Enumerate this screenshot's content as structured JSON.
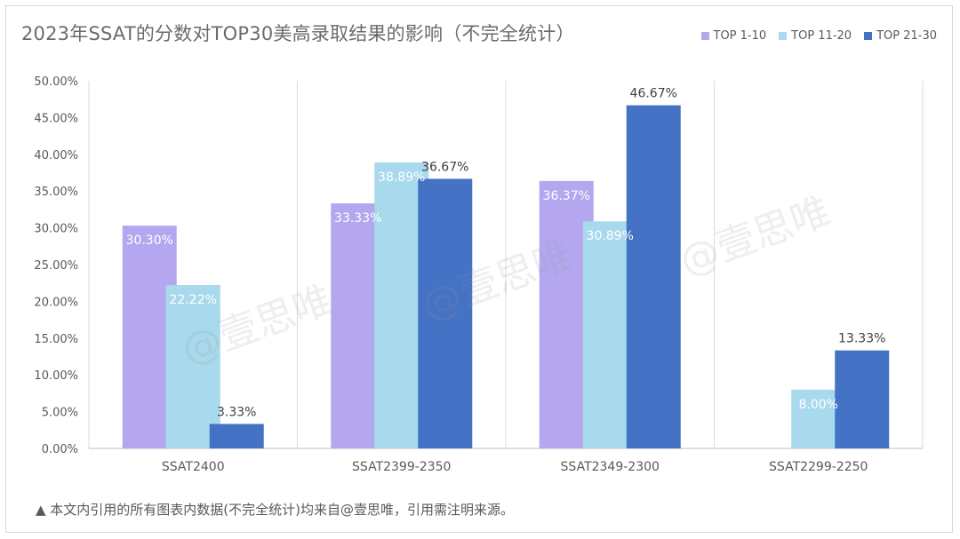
{
  "chart_data": {
    "type": "bar",
    "title": "2023年SSAT的分数对TOP30美高录取结果的影响（不完全统计）",
    "categories": [
      "SSAT2400",
      "SSAT2399-2350",
      "SSAT2349-2300",
      "SSAT2299-2250"
    ],
    "series": [
      {
        "name": "TOP 1-10",
        "color": "#b4a7f0",
        "values": [
          30.3,
          33.33,
          36.37,
          null
        ],
        "labels": [
          "30.30%",
          "33.33%",
          "36.37%",
          ""
        ]
      },
      {
        "name": "TOP 11-20",
        "color": "#a9d9ec",
        "values": [
          22.22,
          38.89,
          30.89,
          8.0
        ],
        "labels": [
          "22.22%",
          "38.89%",
          "30.89%",
          "8.00%"
        ]
      },
      {
        "name": "TOP 21-30",
        "color": "#4472c4",
        "values": [
          3.33,
          36.67,
          46.67,
          13.33
        ],
        "labels": [
          "3.33%",
          "36.67%",
          "46.67%",
          "13.33%"
        ]
      }
    ],
    "ylim": [
      0,
      50
    ],
    "yticks": [
      "0.00%",
      "5.00%",
      "10.00%",
      "15.00%",
      "20.00%",
      "25.00%",
      "30.00%",
      "35.00%",
      "40.00%",
      "45.00%",
      "50.00%"
    ],
    "grid": "vertical-category-separators",
    "legend_position": "top-right"
  },
  "footnote": "▲ 本文内引用的所有图表内数据(不完全统计)均来自@壹思唯，引用需注明来源。",
  "watermark": "@壹思唯"
}
